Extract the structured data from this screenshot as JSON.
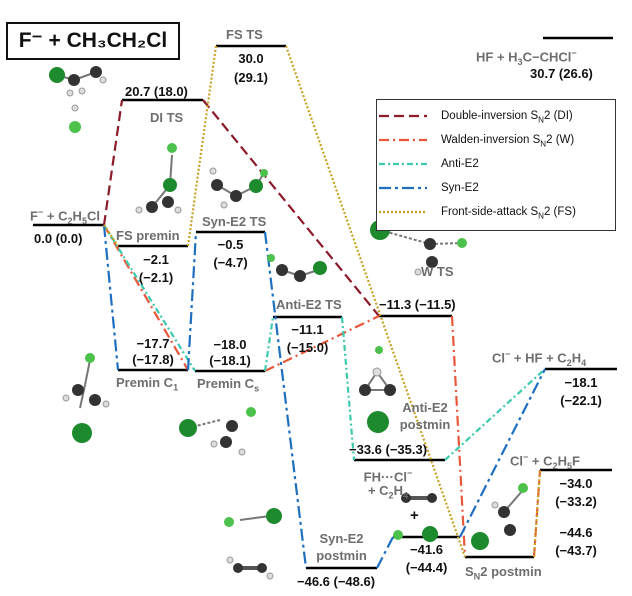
{
  "title": "F⁻ + CH₃CH₂Cl",
  "colors": {
    "double_inversion": "#8b1a2b",
    "walden_inversion": "#e8573a",
    "anti_e2": "#3cc9ad",
    "syn_e2": "#1f6fbf",
    "front_side": "#c8a020",
    "level_line": "#000000",
    "state_label": "#6e6e6e"
  },
  "legend": [
    {
      "label": "Double-inversion S<sub>N</sub>2 (DI)",
      "key": "double_inversion",
      "dash": "10 5"
    },
    {
      "label": "Walden-inversion S<sub>N</sub>2 (W)",
      "key": "walden_inversion",
      "dash": "10 4 2 4"
    },
    {
      "label": "Anti-E2",
      "key": "anti_e2",
      "dash": "6 3 2 3"
    },
    {
      "label": "Syn-E2",
      "key": "syn_e2",
      "dash": "12 4 3 4"
    },
    {
      "label": "Front-side-attack S<sub>N</sub>2 (FS)",
      "key": "front_side",
      "dash": "2 2"
    }
  ],
  "states": {
    "reactants": {
      "name": "F<sup>−</sup> + C<sub>2</sub>H<sub>5</sub>Cl",
      "energy": "0.0 (0.0)"
    },
    "premin_c1": {
      "name": "Premin C<sub>1</sub>",
      "energy_line1": "−17.7",
      "energy_line2": "(−17.8)"
    },
    "fs_premin": {
      "name": "FS premin",
      "energy_line1": "−2.1",
      "energy_line2": "(−2.1)"
    },
    "di_ts": {
      "name": "DI TS",
      "energy": "20.7 (18.0)"
    },
    "fs_ts": {
      "name": "FS TS",
      "energy_line1": "30.0",
      "energy_line2": "(29.1)"
    },
    "premin_cs": {
      "name": "Premin C<sub>s</sub>",
      "energy_line1": "−18.0",
      "energy_line2": "(−18.1)"
    },
    "syn_e2_ts": {
      "name": "Syn-E2 TS",
      "energy_line1": "−0.5",
      "energy_line2": "(−4.7)"
    },
    "anti_e2_ts": {
      "name": "Anti-E2 TS",
      "energy_line1": "−11.1",
      "energy_line2": "(−15.0)"
    },
    "w_ts": {
      "name": "W TS",
      "energy": "−11.3 (−11.5)"
    },
    "anti_e2_postmin": {
      "name_line1": "Anti-E2",
      "name_line2": "postmin",
      "energy": "−33.6 (−35.3)"
    },
    "syn_e2_postmin": {
      "name_line1": "Syn-E2",
      "name_line2": "postmin",
      "energy": "−46.6 (−48.6)"
    },
    "fh_cl_c2h4": {
      "name_line1": "FH···Cl<sup>−</sup>",
      "name_line2": "+ C<sub>2</sub>H<sub>4</sub>",
      "energy_line1": "−41.6",
      "energy_line2": "(−44.4)"
    },
    "sn2_postmin": {
      "name": "S<sub>N</sub>2 postmin",
      "energy_line1": "−44.6",
      "energy_line2": "(−43.7)"
    },
    "hf_h3c_chcl": {
      "name": "HF + H<sub>3</sub>C−CHCl<sup>−</sup>",
      "energy": "30.7 (26.6)"
    },
    "cl_hf_c2h4": {
      "name": "Cl<sup>−</sup> + HF + C<sub>2</sub>H<sub>4</sub>",
      "energy_line1": "−18.1",
      "energy_line2": "(−22.1)"
    },
    "cl_c2h5f": {
      "name": "Cl<sup>−</sup> + C<sub>2</sub>H<sub>5</sub>F",
      "energy_line1": "−34.0",
      "energy_line2": "(−33.2)"
    }
  }
}
